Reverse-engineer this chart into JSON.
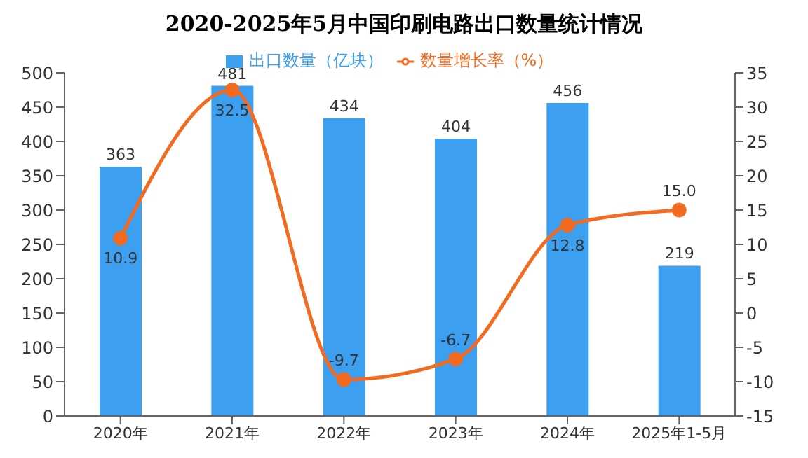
{
  "chart_data": {
    "type": "bar",
    "title": "2020-2025年5月中国印刷电路出口数量统计情况",
    "categories": [
      "2020年",
      "2021年",
      "2022年",
      "2023年",
      "2024年",
      "2025年1-5月"
    ],
    "series": [
      {
        "name": "出口数量（亿块）",
        "color": "#3d9ff0",
        "values": [
          363,
          481,
          434,
          404,
          456,
          219
        ]
      },
      {
        "name": "数量增长率（%）",
        "type": "line",
        "axis": "y2",
        "color": "#f26b21",
        "values": [
          10.9,
          32.5,
          -9.7,
          -6.7,
          12.8,
          15.0
        ],
        "value_labels": [
          "10.9",
          "32.5",
          "-9.7",
          "-6.7",
          "12.8",
          "15.0"
        ]
      }
    ],
    "ylim": [
      0,
      500
    ],
    "yticks": [
      0,
      50,
      100,
      150,
      200,
      250,
      300,
      350,
      400,
      450,
      500
    ],
    "y2lim": [
      -15,
      35
    ],
    "y2ticks": [
      -15,
      -10,
      -5,
      0,
      5,
      10,
      15,
      20,
      25,
      30,
      35
    ],
    "data_labels": true,
    "legend": "top",
    "marker": "circle",
    "grid": false
  }
}
